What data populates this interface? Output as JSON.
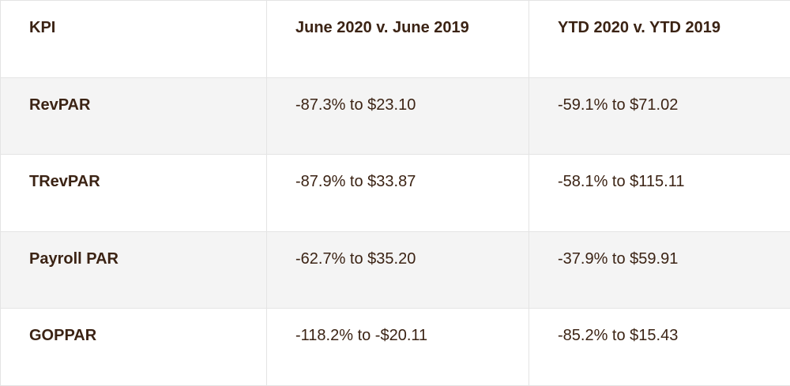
{
  "table": {
    "headers": [
      "KPI",
      "June 2020 v. June 2019",
      "YTD 2020 v. YTD 2019"
    ],
    "rows": [
      [
        "RevPAR",
        "-87.3% to $23.10",
        "-59.1% to $71.02"
      ],
      [
        "TRevPAR",
        "-87.9% to $33.87",
        "-58.1% to $115.11"
      ],
      [
        "Payroll PAR",
        "-62.7% to $35.20",
        "-37.9% to $59.91"
      ],
      [
        "GOPPAR",
        "-118.2% to -$20.11",
        "-85.2% to $15.43"
      ]
    ]
  },
  "colors": {
    "text": "#3b2314",
    "row_alt_background": "#f4f4f4",
    "border": "#e4e4e4"
  }
}
